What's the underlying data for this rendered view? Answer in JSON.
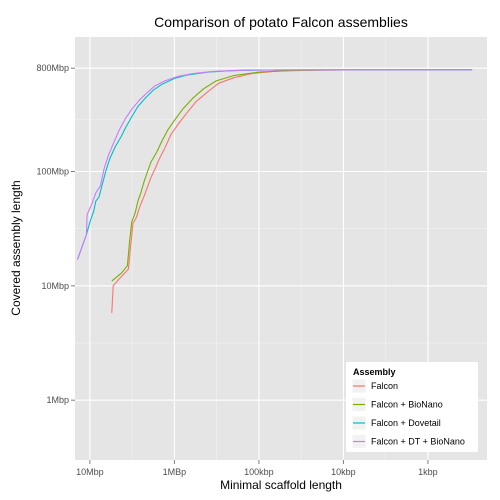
{
  "chart_data": {
    "type": "line",
    "title": "Comparison of potato Falcon assemblies",
    "xlabel": "Minimal scaffold length",
    "ylabel": "Covered assembly length",
    "x_scale": "log10, reversed",
    "y_scale": "log10",
    "xlim": [
      15000000,
      200
    ],
    "ylim": [
      300000,
      1500000000
    ],
    "x_ticks": [
      {
        "value": 10000000,
        "label": "10Mbp"
      },
      {
        "value": 1000000,
        "label": "1MBp"
      },
      {
        "value": 100000,
        "label": "100kbp"
      },
      {
        "value": 10000,
        "label": "10kbp"
      },
      {
        "value": 1000,
        "label": "1kbp"
      }
    ],
    "y_ticks": [
      {
        "value": 1000000,
        "label": "1Mbp"
      },
      {
        "value": 10000000,
        "label": "10Mbp"
      },
      {
        "value": 100000000,
        "label": "100Mbp"
      },
      {
        "value": 800000000,
        "label": "800Mbp"
      }
    ],
    "grid": true,
    "legend": {
      "title": "Assembly",
      "placement": "bottom-right"
    },
    "series": [
      {
        "name": "Falcon",
        "color": "#F8766D",
        "points": [
          [
            5500000,
            5800000
          ],
          [
            5300000,
            10000000
          ],
          [
            4500000,
            11500000
          ],
          [
            3500000,
            14000000
          ],
          [
            3300000,
            22000000
          ],
          [
            3100000,
            35000000
          ],
          [
            2800000,
            40000000
          ],
          [
            2600000,
            48000000
          ],
          [
            2300000,
            60000000
          ],
          [
            2100000,
            72000000
          ],
          [
            1900000,
            88000000
          ],
          [
            1700000,
            105000000
          ],
          [
            1500000,
            130000000
          ],
          [
            1300000,
            160000000
          ],
          [
            1100000,
            210000000
          ],
          [
            900000,
            260000000
          ],
          [
            700000,
            330000000
          ],
          [
            550000,
            410000000
          ],
          [
            400000,
            500000000
          ],
          [
            300000,
            590000000
          ],
          [
            200000,
            660000000
          ],
          [
            120000,
            720000000
          ],
          [
            60000,
            755000000
          ],
          [
            20000,
            770000000
          ],
          [
            5000,
            775000000
          ],
          [
            300,
            775000000
          ]
        ]
      },
      {
        "name": "Falcon + BioNano",
        "color": "#7CAE00",
        "points": [
          [
            5500000,
            11000000
          ],
          [
            4200000,
            13000000
          ],
          [
            3600000,
            15000000
          ],
          [
            3400000,
            24000000
          ],
          [
            3200000,
            36000000
          ],
          [
            2900000,
            44000000
          ],
          [
            2700000,
            55000000
          ],
          [
            2500000,
            65000000
          ],
          [
            2300000,
            80000000
          ],
          [
            2100000,
            98000000
          ],
          [
            1900000,
            120000000
          ],
          [
            1600000,
            150000000
          ],
          [
            1400000,
            185000000
          ],
          [
            1200000,
            230000000
          ],
          [
            1000000,
            280000000
          ],
          [
            800000,
            350000000
          ],
          [
            600000,
            440000000
          ],
          [
            450000,
            530000000
          ],
          [
            320000,
            620000000
          ],
          [
            200000,
            690000000
          ],
          [
            100000,
            740000000
          ],
          [
            40000,
            765000000
          ],
          [
            10000,
            774000000
          ],
          [
            300,
            775000000
          ]
        ]
      },
      {
        "name": "Falcon + Dovetail",
        "color": "#00BFC4",
        "points": [
          [
            14000000,
            17000000
          ],
          [
            11000000,
            28000000
          ],
          [
            10000000,
            36000000
          ],
          [
            9000000,
            45000000
          ],
          [
            8500000,
            55000000
          ],
          [
            7800000,
            60000000
          ],
          [
            7200000,
            75000000
          ],
          [
            6500000,
            100000000
          ],
          [
            5800000,
            130000000
          ],
          [
            5000000,
            165000000
          ],
          [
            4300000,
            200000000
          ],
          [
            3800000,
            240000000
          ],
          [
            3200000,
            300000000
          ],
          [
            2700000,
            370000000
          ],
          [
            2200000,
            440000000
          ],
          [
            1800000,
            510000000
          ],
          [
            1400000,
            580000000
          ],
          [
            1000000,
            650000000
          ],
          [
            700000,
            700000000
          ],
          [
            400000,
            740000000
          ],
          [
            200000,
            762000000
          ],
          [
            80000,
            772000000
          ],
          [
            20000,
            775000000
          ],
          [
            300,
            775000000
          ]
        ]
      },
      {
        "name": "Falcon + DT + BioNano",
        "color": "#C77CFF",
        "points": [
          [
            14000000,
            17000000
          ],
          [
            11000000,
            28000000
          ],
          [
            10800000,
            42000000
          ],
          [
            9500000,
            52000000
          ],
          [
            8500000,
            65000000
          ],
          [
            7500000,
            75000000
          ],
          [
            6800000,
            105000000
          ],
          [
            6000000,
            140000000
          ],
          [
            5200000,
            180000000
          ],
          [
            4500000,
            230000000
          ],
          [
            3800000,
            290000000
          ],
          [
            3200000,
            350000000
          ],
          [
            2600000,
            420000000
          ],
          [
            2100000,
            490000000
          ],
          [
            1700000,
            560000000
          ],
          [
            1300000,
            620000000
          ],
          [
            900000,
            680000000
          ],
          [
            600000,
            720000000
          ],
          [
            350000,
            750000000
          ],
          [
            150000,
            768000000
          ],
          [
            50000,
            774000000
          ],
          [
            300,
            775000000
          ]
        ]
      }
    ]
  }
}
